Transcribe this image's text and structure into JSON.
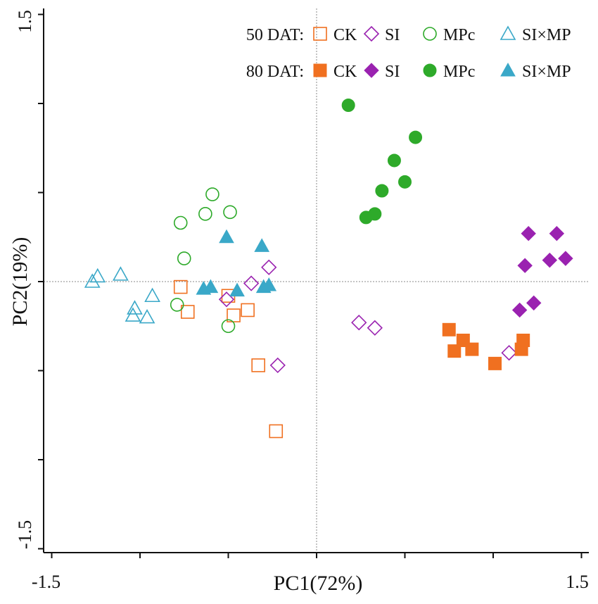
{
  "chart_data": {
    "type": "scatter",
    "title": "",
    "xlabel": "PC1(72%)",
    "ylabel": "PC2(19%)",
    "xlim": [
      -1.5,
      1.5
    ],
    "ylim": [
      -1.5,
      1.5
    ],
    "x_tick_labels": [
      "-1.5",
      "1.5"
    ],
    "y_tick_labels": [
      "1.5",
      "-1.5"
    ],
    "x_tick_values": [
      -1.5,
      -1.0,
      -0.5,
      0,
      0.5,
      1.0,
      1.5
    ],
    "y_tick_values": [
      -1.5,
      -1.0,
      -0.5,
      0,
      0.5,
      1.0,
      1.5
    ],
    "reference_lines": {
      "x": 0,
      "y": 0
    },
    "legend": {
      "position": "top-right",
      "rows": [
        {
          "label": "50 DAT:",
          "entries": [
            "CK",
            "SI",
            "MPc",
            "SI×MP"
          ],
          "filled": false
        },
        {
          "label": "80 DAT:",
          "entries": [
            "CK",
            "SI",
            "MPc",
            "SI×MP"
          ],
          "filled": true
        }
      ]
    },
    "colors": {
      "CK": "#f07020",
      "SI": "#9a22b0",
      "MPc": "#2eaa2a",
      "SI×MP": "#3aa8c8"
    },
    "series": [
      {
        "name": "CK",
        "time": "50 DAT",
        "marker": "square",
        "filled": false,
        "points": [
          [
            -0.77,
            -0.03
          ],
          [
            -0.73,
            -0.17
          ],
          [
            -0.5,
            -0.08
          ],
          [
            -0.47,
            -0.19
          ],
          [
            -0.39,
            -0.16
          ],
          [
            -0.33,
            -0.47
          ],
          [
            -0.23,
            -0.84
          ]
        ]
      },
      {
        "name": "SI",
        "time": "50 DAT",
        "marker": "diamond",
        "filled": false,
        "points": [
          [
            -0.51,
            -0.1
          ],
          [
            -0.37,
            -0.01
          ],
          [
            -0.27,
            0.08
          ],
          [
            -0.22,
            -0.47
          ],
          [
            0.24,
            -0.23
          ],
          [
            0.33,
            -0.26
          ],
          [
            1.09,
            -0.4
          ]
        ]
      },
      {
        "name": "MPc",
        "time": "50 DAT",
        "marker": "circle",
        "filled": false,
        "points": [
          [
            -0.77,
            0.33
          ],
          [
            -0.75,
            0.13
          ],
          [
            -0.79,
            -0.13
          ],
          [
            -0.63,
            0.38
          ],
          [
            -0.59,
            0.49
          ],
          [
            -0.49,
            0.39
          ],
          [
            -0.5,
            -0.25
          ]
        ]
      },
      {
        "name": "SI×MP",
        "time": "50 DAT",
        "marker": "triangle",
        "filled": false,
        "points": [
          [
            -1.27,
            0.0
          ],
          [
            -1.24,
            0.03
          ],
          [
            -1.11,
            0.04
          ],
          [
            -1.03,
            -0.15
          ],
          [
            -1.04,
            -0.19
          ],
          [
            -0.96,
            -0.2
          ],
          [
            -0.93,
            -0.08
          ]
        ]
      },
      {
        "name": "CK",
        "time": "80 DAT",
        "marker": "square",
        "filled": true,
        "points": [
          [
            0.75,
            -0.27
          ],
          [
            0.78,
            -0.39
          ],
          [
            0.83,
            -0.33
          ],
          [
            0.88,
            -0.38
          ],
          [
            1.01,
            -0.46
          ],
          [
            1.16,
            -0.38
          ],
          [
            1.17,
            -0.33
          ]
        ]
      },
      {
        "name": "SI",
        "time": "80 DAT",
        "marker": "diamond",
        "filled": true,
        "points": [
          [
            1.2,
            0.27
          ],
          [
            1.18,
            0.09
          ],
          [
            1.32,
            0.12
          ],
          [
            1.36,
            0.27
          ],
          [
            1.41,
            0.13
          ],
          [
            1.23,
            -0.12
          ],
          [
            1.15,
            -0.16
          ]
        ]
      },
      {
        "name": "MPc",
        "time": "80 DAT",
        "marker": "circle",
        "filled": true,
        "points": [
          [
            0.18,
            0.99
          ],
          [
            0.56,
            0.81
          ],
          [
            0.44,
            0.68
          ],
          [
            0.5,
            0.56
          ],
          [
            0.37,
            0.51
          ],
          [
            0.28,
            0.36
          ],
          [
            0.33,
            0.38
          ]
        ]
      },
      {
        "name": "SI×MP",
        "time": "80 DAT",
        "marker": "triangle",
        "filled": true,
        "points": [
          [
            -0.51,
            0.25
          ],
          [
            -0.31,
            0.2
          ],
          [
            -0.64,
            -0.04
          ],
          [
            -0.6,
            -0.03
          ],
          [
            -0.45,
            -0.05
          ],
          [
            -0.3,
            -0.03
          ],
          [
            -0.27,
            -0.02
          ]
        ]
      }
    ]
  }
}
